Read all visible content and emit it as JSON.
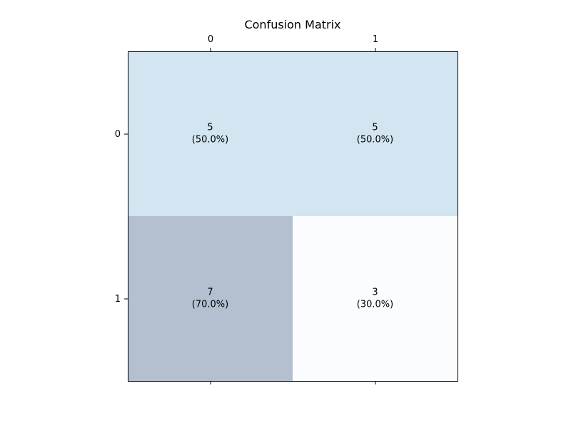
{
  "chart_data": {
    "type": "heatmap",
    "title": "Confusion Matrix",
    "x_tick_labels": [
      "0",
      "1"
    ],
    "y_tick_labels": [
      "0",
      "1"
    ],
    "values": [
      [
        5,
        5
      ],
      [
        7,
        3
      ]
    ],
    "percent_labels": [
      [
        "(50.0%)",
        "(50.0%)"
      ],
      [
        "(70.0%)",
        "(30.0%)"
      ]
    ],
    "xlabel": "",
    "ylabel": "",
    "x_ticks_position": "top and bottom",
    "grid": false,
    "colors": {
      "cell_0_0": "#d2e5f0",
      "cell_0_1": "#d2e5f0",
      "cell_1_0": "#b4bfd0",
      "cell_1_1": "#fafcfe"
    }
  }
}
